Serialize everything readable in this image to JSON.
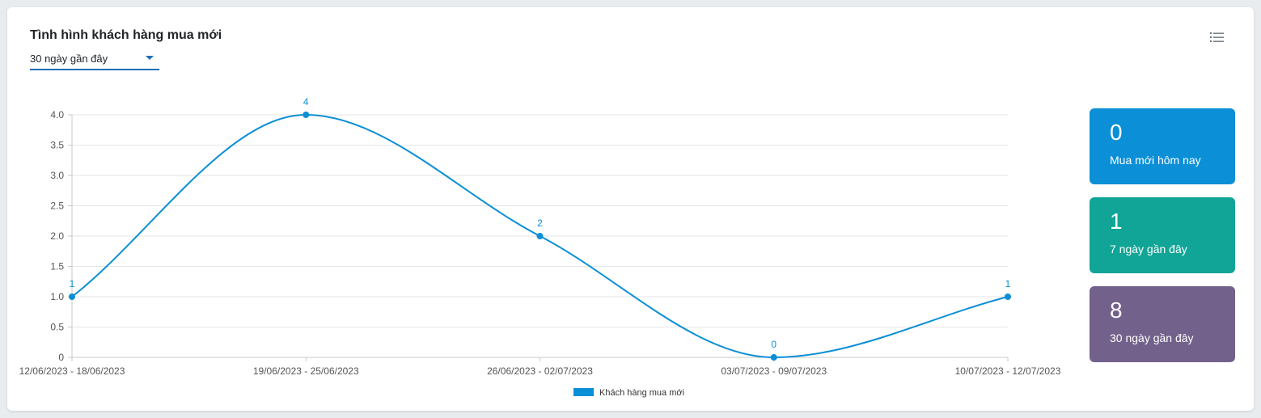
{
  "widget": {
    "title": "Tình hình khách hàng mua mới",
    "period_select": {
      "value": "30 ngày gần đây"
    },
    "menu_icon": "list-menu-icon"
  },
  "chart_data": {
    "type": "line",
    "categories": [
      "12/06/2023 - 18/06/2023",
      "19/06/2023 - 25/06/2023",
      "26/06/2023 - 02/07/2023",
      "03/07/2023 - 09/07/2023",
      "10/07/2023 - 12/07/2023"
    ],
    "series": [
      {
        "name": "Khách hàng mua mới",
        "values": [
          1,
          4,
          2,
          0,
          1
        ],
        "color": "#0b8fd6"
      }
    ],
    "ylim": [
      0,
      4
    ],
    "yticks": [
      "0",
      "0.5",
      "1.0",
      "1.5",
      "2.0",
      "2.5",
      "3.0",
      "3.5",
      "4.0"
    ],
    "grid": true,
    "smooth": true,
    "data_labels": true,
    "legend_position": "bottom"
  },
  "stats": [
    {
      "value": "0",
      "label": "Mua mới hôm nay",
      "color": "#0b8fd6"
    },
    {
      "value": "1",
      "label": "7 ngày gần đây",
      "color": "#10a596"
    },
    {
      "value": "8",
      "label": "30 ngày gần đây",
      "color": "#72618b"
    }
  ]
}
